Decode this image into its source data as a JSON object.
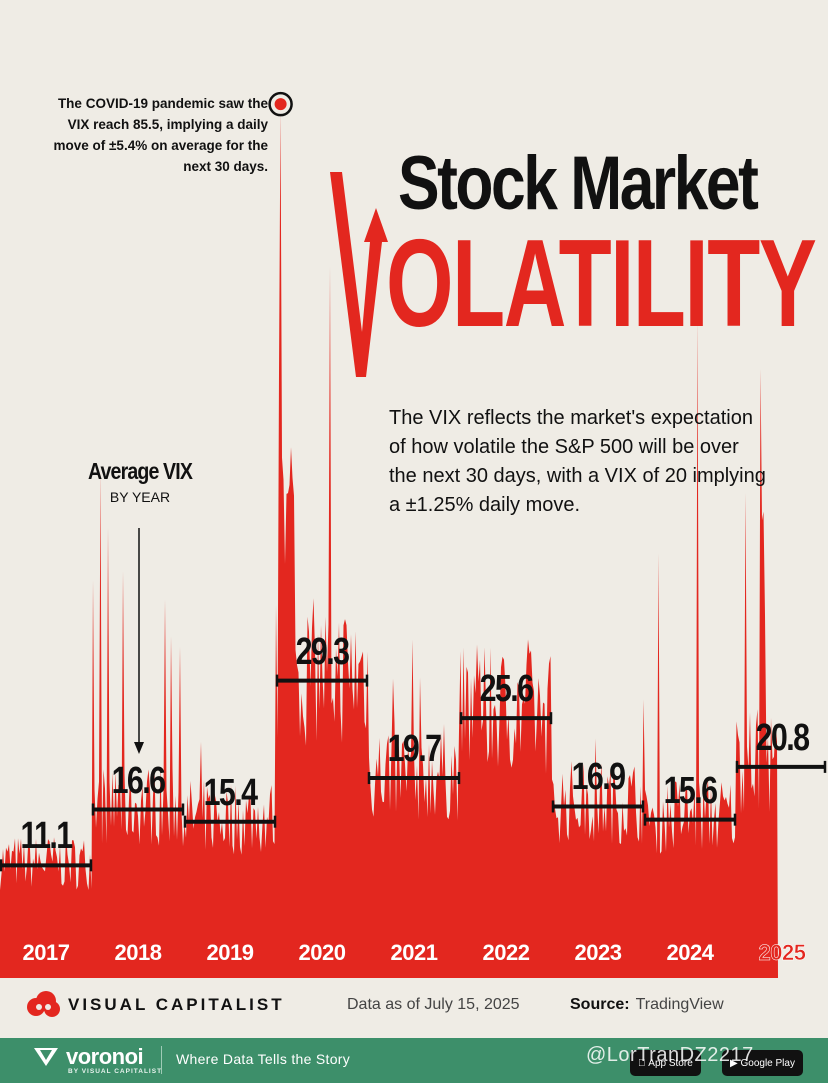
{
  "header": {
    "title_line1": "Stock Market",
    "title_line2": "OLATILITY",
    "description": "The VIX reflects the market's expectation of how volatile the S&P 500 will be over the next 30 days, with a VIX of 20 implying a ±1.25% daily move.",
    "covid_note": "The COVID-19 pandemic saw the VIX reach 85.5, implying a daily move of ±5.4% on average for the next 30 days.",
    "avg_label": "Average VIX",
    "avg_sublabel": "BY YEAR"
  },
  "chart_data": {
    "type": "area",
    "title": "Stock Market Volatility",
    "series_name": "VIX",
    "peak": {
      "year": 2020,
      "value": 85.5
    },
    "categories": [
      "2017",
      "2018",
      "2019",
      "2020",
      "2021",
      "2022",
      "2023",
      "2024",
      "2025"
    ],
    "annual_average": [
      11.1,
      16.6,
      15.4,
      29.3,
      19.7,
      25.6,
      16.9,
      15.6,
      20.8
    ],
    "annual_average_labels": [
      "11.1",
      "16.6",
      "15.4",
      "29.3",
      "19.7",
      "25.6",
      "16.9",
      "15.6",
      "20.8"
    ],
    "approx_yearly_max": [
      17,
      50,
      28,
      85.5,
      37,
      36,
      30,
      65,
      60
    ],
    "ylim": [
      0,
      90
    ],
    "colors": {
      "area": "#e3271f",
      "avg_line": "#111111",
      "background": "#efece5"
    }
  },
  "footer": {
    "brand": "VISUAL CAPITALIST",
    "data_as": "Data as of July 15, 2025",
    "source_label": "Source:",
    "source_value": "TradingView"
  },
  "bottom_bar": {
    "app_name": "voronoi",
    "app_sub": "BY VISUAL CAPITALIST",
    "tagline": "Where Data Tells the Story",
    "app_store": "App Store",
    "google_play": "Google Play",
    "watermark": "@LorTranDZ2217"
  }
}
